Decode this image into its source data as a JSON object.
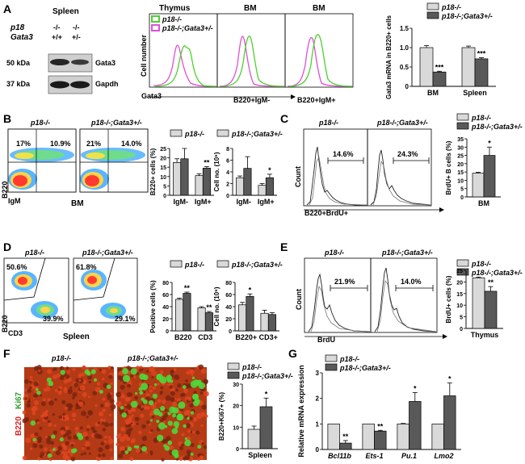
{
  "panels": {
    "A": {
      "letter": "A",
      "western": {
        "title": "Spleen",
        "row_p18": "p18",
        "row_gata3": "Gata3",
        "p18_lane1": "-/-",
        "p18_lane2": "-/-",
        "gata3_lane1": "+/+",
        "gata3_lane2": "+/-",
        "mw1": "50 kDa",
        "band1": "Gata3",
        "mw2": "37 kDa",
        "band2": "Gapdh"
      },
      "hist": {
        "legend1": "p18-/-",
        "legend2": "p18-/-;Gata3+/-",
        "panel_titles": [
          "Thymus",
          "BM",
          "BM"
        ],
        "ylabel": "Cell number",
        "xlabels": [
          "Gata3",
          "B220+IgM-",
          "B220+IgM+"
        ],
        "legend_colors": [
          "#4fcf2f",
          "#e04fd8"
        ]
      },
      "chart_data": {
        "type": "bar",
        "categories": [
          "BM",
          "Spleen"
        ],
        "series": [
          {
            "name": "p18-/-",
            "values": [
              1.0,
              1.0
            ],
            "errors": [
              0.05,
              0.04
            ],
            "color": "#d9d9d9"
          },
          {
            "name": "p18-/-;Gata3+/-",
            "values": [
              0.37,
              0.71
            ],
            "errors": [
              0.02,
              0.03
            ],
            "color": "#595959"
          }
        ],
        "significance": [
          "***",
          "***"
        ],
        "ylim": [
          0,
          1.5
        ],
        "yticks": [
          "0",
          "0.5",
          "1.0",
          "1.5"
        ],
        "ylabel": "Gata3 mRNA in B220+ cells"
      }
    },
    "B": {
      "letter": "B",
      "facs": {
        "genotype1": "p18-/-",
        "genotype2": "p18-/-;Gata3+/-",
        "q1_1": "17%",
        "q1_2": "10.9%",
        "q2_1": "21%",
        "q2_2": "14.0%",
        "xlab": "IgM",
        "ylab": "B220",
        "tissue": "BM"
      },
      "legend": [
        "p18-/-",
        "p18-/-;Gata3+/-"
      ],
      "chart1": {
        "type": "bar",
        "categories": [
          "IgM-",
          "IgM+"
        ],
        "series": [
          {
            "name": "p18-/-",
            "values": [
              17.5,
              10.5
            ],
            "errors": [
              2,
              1
            ]
          },
          {
            "name": "p18-/-;Gata3+/-",
            "values": [
              19.5,
              14.5
            ],
            "errors": [
              5.5,
              0.8
            ]
          }
        ],
        "significance": [
          "",
          "**"
        ],
        "ylim": [
          0,
          25
        ],
        "yticks": [
          "0",
          "5",
          "10",
          "15",
          "20",
          "25"
        ],
        "ylabel": "B220+ cells (%)"
      },
      "chart2": {
        "type": "bar",
        "categories": [
          "IgM-",
          "IgM+"
        ],
        "series": [
          {
            "name": "p18-/-",
            "values": [
              3.0,
              1.7
            ],
            "errors": [
              0.3,
              0.3
            ]
          },
          {
            "name": "p18-/-;Gata3+/-",
            "values": [
              4.6,
              3.0
            ],
            "errors": [
              2.0,
              0.6
            ]
          }
        ],
        "significance": [
          "",
          "*"
        ],
        "ylim": [
          0,
          8
        ],
        "yticks": [
          "0",
          "2",
          "4",
          "6",
          "8"
        ],
        "ylabel": "Cell no. (10⁶)"
      }
    },
    "C": {
      "letter": "C",
      "hist": {
        "genotype1": "p18-/-",
        "genotype2": "p18-/-;Gata3+/-",
        "gate1": "14.6%",
        "gate2": "24.3%",
        "ylab": "Count",
        "xlab": "B220+BrdU+"
      },
      "legend": [
        "p18-/-",
        "p18-/-;Gata3+/-"
      ],
      "chart": {
        "type": "bar",
        "categories": [
          "BM"
        ],
        "series": [
          {
            "name": "p18-/-",
            "values": [
              14.3
            ],
            "errors": [
              0.5
            ]
          },
          {
            "name": "p18-/-;Gata3+/-",
            "values": [
              25
            ],
            "errors": [
              5
            ]
          }
        ],
        "significance": [
          "*"
        ],
        "ylim": [
          0,
          35
        ],
        "yticks": [
          "0",
          "5",
          "10",
          "15",
          "20",
          "25",
          "30",
          "35"
        ],
        "ylabel": "BrdU+ B cells (%)"
      }
    },
    "D": {
      "letter": "D",
      "facs": {
        "genotype1": "p18-/-",
        "genotype2": "p18-/-;Gata3+/-",
        "q1_1": "50.6%",
        "q1_2": "39.9%",
        "q2_1": "61.8%",
        "q2_2": "29.1%",
        "xlab": "CD3",
        "ylab": "B220",
        "tissue": "Spleen"
      },
      "legend": [
        "p18-/-",
        "p18-/-;Gata3+/-"
      ],
      "chart1": {
        "type": "bar",
        "categories": [
          "B220",
          "CD3"
        ],
        "series": [
          {
            "name": "p18-/-",
            "values": [
              52,
              38
            ],
            "errors": [
              2,
              2
            ]
          },
          {
            "name": "p18-/-;Gata3+/-",
            "values": [
              62,
              30
            ],
            "errors": [
              2,
              2
            ]
          }
        ],
        "significance": [
          "**",
          "**"
        ],
        "ylim": [
          0,
          80
        ],
        "yticks": [
          "0",
          "20",
          "40",
          "60",
          "80"
        ],
        "ylabel": "Positive cells (%)"
      },
      "chart2": {
        "type": "bar",
        "categories": [
          "B220+",
          "CD3+"
        ],
        "series": [
          {
            "name": "p18-/-",
            "values": [
              43,
              29
            ],
            "errors": [
              4,
              5
            ]
          },
          {
            "name": "p18-/-;Gata3+/-",
            "values": [
              57,
              27
            ],
            "errors": [
              4,
              3
            ]
          }
        ],
        "significance": [
          "*",
          ""
        ],
        "ylim": [
          0,
          80
        ],
        "yticks": [
          "0",
          "20",
          "40",
          "60",
          "80"
        ],
        "ylabel": "Cell no. (10⁶)"
      }
    },
    "E": {
      "letter": "E",
      "hist": {
        "genotype1": "p18-/-",
        "genotype2": "p18-/-;Gata3+/-",
        "gate1": "21.9%",
        "gate2": "14.0%",
        "ylab": "Count",
        "xlab": "BrdU"
      },
      "legend": [
        "p18-/-",
        "p18-/-;Gata3+/-"
      ],
      "chart": {
        "type": "bar",
        "categories": [
          "Thymus"
        ],
        "series": [
          {
            "name": "p18-/-",
            "values": [
              21.8
            ],
            "errors": [
              0.3
            ]
          },
          {
            "name": "p18-/-;Gata3+/-",
            "values": [
              16
            ],
            "errors": [
              2
            ]
          }
        ],
        "significance": [
          "**"
        ],
        "ylim": [
          0,
          25
        ],
        "yticks": [
          "0",
          "5",
          "10",
          "15",
          "20",
          "25"
        ],
        "ylabel": "BrdU+ cells (%)"
      }
    },
    "F": {
      "letter": "F",
      "img": {
        "genotype1": "p18-/-",
        "genotype2": "p18-/-;Gata3+/-",
        "stain1": "B220",
        "stain2": "Ki67"
      },
      "legend": [
        "p18-/-",
        "p18-/-;Gata3+/-"
      ],
      "chart": {
        "type": "bar",
        "categories": [
          "Spleen"
        ],
        "series": [
          {
            "name": "p18-/-",
            "values": [
              9
            ],
            "errors": [
              1.5
            ]
          },
          {
            "name": "p18-/-;Gata3+/-",
            "values": [
              19.5
            ],
            "errors": [
              4
            ]
          }
        ],
        "significance": [
          "*"
        ],
        "ylim": [
          0,
          30
        ],
        "yticks": [
          "0",
          "10",
          "20",
          "30"
        ],
        "ylabel": "B220+Ki67+ (%)"
      }
    },
    "G": {
      "letter": "G",
      "legend": [
        "p18-/-",
        "p18-/-;Gata3+/-"
      ],
      "chart": {
        "type": "bar",
        "categories": [
          "Bcl11b",
          "Ets-1",
          "Pu.1",
          "Lmo2"
        ],
        "series": [
          {
            "name": "p18-/-",
            "values": [
              1,
              1,
              1,
              1
            ],
            "errors": [
              0,
              0,
              0.02,
              0
            ]
          },
          {
            "name": "p18-/-;Gata3+/-",
            "values": [
              0.25,
              0.72,
              1.88,
              2.1
            ],
            "errors": [
              0.1,
              0.03,
              0.35,
              0.5
            ]
          }
        ],
        "significance": [
          "**",
          "**",
          "*",
          "*"
        ],
        "ylim": [
          0,
          3
        ],
        "yticks": [
          "0",
          "1",
          "2",
          "3"
        ],
        "ylabel": "Relative mRNA expression"
      }
    }
  }
}
